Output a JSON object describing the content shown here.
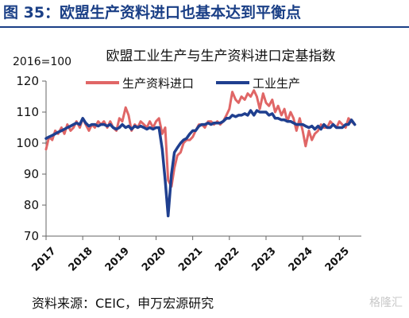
{
  "header": {
    "title": "图 35：欧盟生产资料进口也基本达到平衡点"
  },
  "footer": {
    "source": "资料来源：CEIC，申万宏源研究",
    "watermark": "格隆汇"
  },
  "chart_data": {
    "type": "line",
    "title": "欧盟工业生产与生产资料进口定基指数",
    "ylabel": "2016=100",
    "ylim": [
      70,
      120
    ],
    "yticks": [
      70,
      80,
      90,
      100,
      110,
      120
    ],
    "xlim": [
      2017.0,
      2025.6
    ],
    "xticks": [
      "2017",
      "2018",
      "2019",
      "2020",
      "2021",
      "2022",
      "2023",
      "2024",
      "2025"
    ],
    "grid": false,
    "legend": "top",
    "series": [
      {
        "name": "生产资料进口",
        "color": "#e06666",
        "points": [
          [
            2017.0,
            98
          ],
          [
            2017.08,
            102
          ],
          [
            2017.17,
            101
          ],
          [
            2017.25,
            104
          ],
          [
            2017.33,
            103
          ],
          [
            2017.42,
            105
          ],
          [
            2017.5,
            103
          ],
          [
            2017.58,
            106
          ],
          [
            2017.67,
            104
          ],
          [
            2017.75,
            105
          ],
          [
            2017.83,
            107
          ],
          [
            2017.92,
            105
          ],
          [
            2018.0,
            108
          ],
          [
            2018.08,
            106
          ],
          [
            2018.17,
            104
          ],
          [
            2018.25,
            106
          ],
          [
            2018.33,
            105
          ],
          [
            2018.42,
            107
          ],
          [
            2018.5,
            106
          ],
          [
            2018.58,
            107
          ],
          [
            2018.67,
            105
          ],
          [
            2018.75,
            107
          ],
          [
            2018.83,
            105
          ],
          [
            2018.92,
            104
          ],
          [
            2019.0,
            108
          ],
          [
            2019.08,
            107
          ],
          [
            2019.17,
            111.5
          ],
          [
            2019.25,
            109
          ],
          [
            2019.33,
            104
          ],
          [
            2019.42,
            106
          ],
          [
            2019.5,
            105
          ],
          [
            2019.58,
            107
          ],
          [
            2019.67,
            106
          ],
          [
            2019.75,
            105
          ],
          [
            2019.83,
            107
          ],
          [
            2019.92,
            105
          ],
          [
            2020.0,
            107
          ],
          [
            2020.08,
            108
          ],
          [
            2020.17,
            103
          ],
          [
            2020.25,
            105
          ],
          [
            2020.33,
            88
          ],
          [
            2020.42,
            86
          ],
          [
            2020.5,
            92
          ],
          [
            2020.58,
            96
          ],
          [
            2020.67,
            97
          ],
          [
            2020.75,
            100
          ],
          [
            2020.83,
            101
          ],
          [
            2020.92,
            101
          ],
          [
            2021.0,
            102
          ],
          [
            2021.08,
            104
          ],
          [
            2021.17,
            106
          ],
          [
            2021.25,
            106
          ],
          [
            2021.33,
            105
          ],
          [
            2021.42,
            107
          ],
          [
            2021.5,
            107
          ],
          [
            2021.58,
            106
          ],
          [
            2021.67,
            107
          ],
          [
            2021.75,
            106
          ],
          [
            2021.83,
            107
          ],
          [
            2021.92,
            109
          ],
          [
            2022.0,
            111
          ],
          [
            2022.08,
            116.5
          ],
          [
            2022.17,
            114
          ],
          [
            2022.25,
            113
          ],
          [
            2022.33,
            115
          ],
          [
            2022.42,
            114
          ],
          [
            2022.5,
            116
          ],
          [
            2022.58,
            115
          ],
          [
            2022.67,
            117
          ],
          [
            2022.75,
            115
          ],
          [
            2022.83,
            111
          ],
          [
            2022.92,
            116
          ],
          [
            2023.0,
            113
          ],
          [
            2023.08,
            112
          ],
          [
            2023.17,
            114
          ],
          [
            2023.25,
            110
          ],
          [
            2023.33,
            112
          ],
          [
            2023.42,
            109
          ],
          [
            2023.5,
            111
          ],
          [
            2023.58,
            107
          ],
          [
            2023.67,
            110
          ],
          [
            2023.75,
            108
          ],
          [
            2023.83,
            104
          ],
          [
            2023.92,
            108
          ],
          [
            2024.0,
            104
          ],
          [
            2024.08,
            99
          ],
          [
            2024.17,
            104
          ],
          [
            2024.25,
            101
          ],
          [
            2024.33,
            103
          ],
          [
            2024.42,
            104
          ],
          [
            2024.5,
            106
          ],
          [
            2024.58,
            105
          ],
          [
            2024.67,
            105
          ],
          [
            2024.75,
            107
          ],
          [
            2024.83,
            106
          ],
          [
            2024.92,
            105
          ],
          [
            2025.0,
            107
          ],
          [
            2025.08,
            106
          ],
          [
            2025.17,
            105
          ],
          [
            2025.25,
            108
          ],
          [
            2025.33,
            107
          ],
          [
            2025.42,
            106
          ]
        ]
      },
      {
        "name": "工业生产",
        "color": "#1f3f8f",
        "points": [
          [
            2017.0,
            101.5
          ],
          [
            2017.08,
            102
          ],
          [
            2017.17,
            102.5
          ],
          [
            2017.25,
            103
          ],
          [
            2017.33,
            103.5
          ],
          [
            2017.42,
            104
          ],
          [
            2017.5,
            104.5
          ],
          [
            2017.58,
            105
          ],
          [
            2017.67,
            105.5
          ],
          [
            2017.75,
            106
          ],
          [
            2017.83,
            106.5
          ],
          [
            2017.92,
            106
          ],
          [
            2018.0,
            108
          ],
          [
            2018.08,
            106.5
          ],
          [
            2018.17,
            105.5
          ],
          [
            2018.25,
            106
          ],
          [
            2018.33,
            106
          ],
          [
            2018.42,
            105.5
          ],
          [
            2018.5,
            106
          ],
          [
            2018.58,
            106
          ],
          [
            2018.67,
            105.5
          ],
          [
            2018.75,
            106
          ],
          [
            2018.83,
            105
          ],
          [
            2018.92,
            104.5
          ],
          [
            2019.0,
            105
          ],
          [
            2019.08,
            106
          ],
          [
            2019.17,
            105
          ],
          [
            2019.25,
            105.5
          ],
          [
            2019.33,
            104.5
          ],
          [
            2019.42,
            105.5
          ],
          [
            2019.5,
            105
          ],
          [
            2019.58,
            105.5
          ],
          [
            2019.67,
            105
          ],
          [
            2019.75,
            104.5
          ],
          [
            2019.83,
            105
          ],
          [
            2019.92,
            104.5
          ],
          [
            2020.0,
            105
          ],
          [
            2020.08,
            105
          ],
          [
            2020.17,
            98
          ],
          [
            2020.25,
            88
          ],
          [
            2020.33,
            76.5
          ],
          [
            2020.42,
            90
          ],
          [
            2020.5,
            97
          ],
          [
            2020.58,
            98.5
          ],
          [
            2020.67,
            100
          ],
          [
            2020.75,
            101
          ],
          [
            2020.83,
            101.5
          ],
          [
            2020.92,
            103
          ],
          [
            2021.0,
            104
          ],
          [
            2021.08,
            104
          ],
          [
            2021.17,
            105.5
          ],
          [
            2021.25,
            106
          ],
          [
            2021.33,
            106
          ],
          [
            2021.42,
            106.5
          ],
          [
            2021.5,
            106
          ],
          [
            2021.58,
            106.5
          ],
          [
            2021.67,
            106.5
          ],
          [
            2021.75,
            106.5
          ],
          [
            2021.83,
            107
          ],
          [
            2021.92,
            108
          ],
          [
            2022.0,
            108
          ],
          [
            2022.08,
            109
          ],
          [
            2022.17,
            108.5
          ],
          [
            2022.25,
            109
          ],
          [
            2022.33,
            109
          ],
          [
            2022.42,
            109.5
          ],
          [
            2022.5,
            109
          ],
          [
            2022.58,
            110.5
          ],
          [
            2022.67,
            109
          ],
          [
            2022.75,
            110.5
          ],
          [
            2022.83,
            110
          ],
          [
            2022.92,
            110
          ],
          [
            2023.0,
            110
          ],
          [
            2023.08,
            109
          ],
          [
            2023.17,
            109.5
          ],
          [
            2023.25,
            108
          ],
          [
            2023.33,
            108
          ],
          [
            2023.42,
            107.5
          ],
          [
            2023.5,
            107.5
          ],
          [
            2023.58,
            107
          ],
          [
            2023.67,
            107
          ],
          [
            2023.75,
            106.5
          ],
          [
            2023.83,
            106
          ],
          [
            2023.92,
            106
          ],
          [
            2024.0,
            106
          ],
          [
            2024.08,
            105.5
          ],
          [
            2024.17,
            105
          ],
          [
            2024.25,
            105.5
          ],
          [
            2024.33,
            104.5
          ],
          [
            2024.42,
            105.5
          ],
          [
            2024.5,
            104.5
          ],
          [
            2024.58,
            106
          ],
          [
            2024.67,
            105
          ],
          [
            2024.75,
            105
          ],
          [
            2024.83,
            106
          ],
          [
            2024.92,
            105
          ],
          [
            2025.0,
            105
          ],
          [
            2025.08,
            105
          ],
          [
            2025.17,
            106
          ],
          [
            2025.25,
            106
          ],
          [
            2025.33,
            107.5
          ],
          [
            2025.42,
            106
          ]
        ]
      }
    ]
  }
}
